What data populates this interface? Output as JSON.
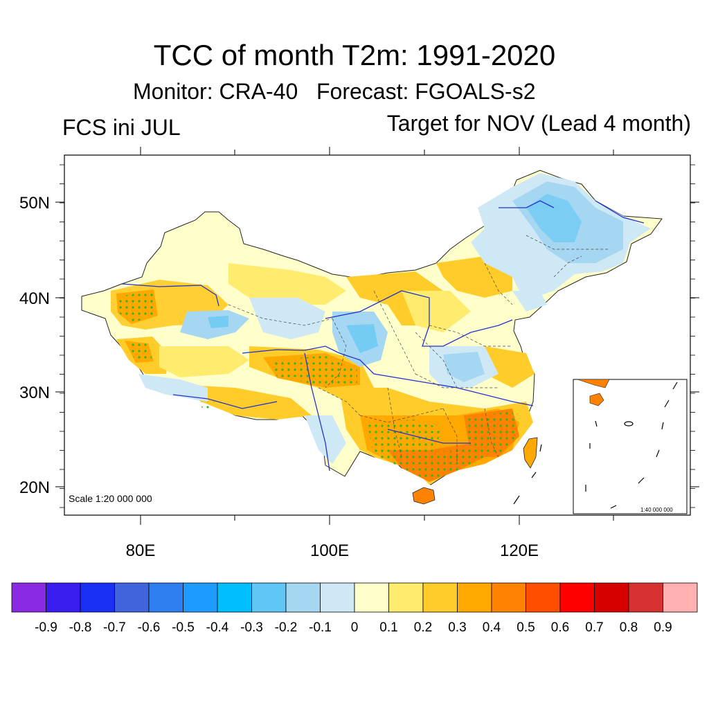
{
  "title": "TCC of month T2m: 1991-2020",
  "subtitle": "Monitor: CRA-40   Forecast: FGOALS-s2",
  "left_label": "FCS ini JUL",
  "right_label": "Target for NOV (Lead 4 month)",
  "axes": {
    "lat_ticks": [
      "50N",
      "40N",
      "30N",
      "20N"
    ],
    "lon_ticks": [
      "80E",
      "100E",
      "120E"
    ]
  },
  "scale_main": "Scale 1:20 000 000",
  "scale_inset": "1:40 000 000",
  "colorbar": {
    "labels": [
      "-0.9",
      "-0.8",
      "-0.7",
      "-0.6",
      "-0.5",
      "-0.4",
      "-0.3",
      "-0.2",
      "-0.1",
      "0",
      "0.1",
      "0.2",
      "0.3",
      "0.4",
      "0.5",
      "0.6",
      "0.7",
      "0.8",
      "0.9"
    ],
    "colors": [
      "#8a2be2",
      "#3a1ef0",
      "#1a30f5",
      "#3f64dd",
      "#2f7ff0",
      "#1e9bff",
      "#00bfff",
      "#5fc6f5",
      "#a6d7f2",
      "#cfe8f6",
      "#ffffcc",
      "#ffec6e",
      "#ffcc2a",
      "#ffa800",
      "#ff8200",
      "#ff4e00",
      "#ff0000",
      "#d70000",
      "#d63232",
      "#ffb0b0"
    ]
  },
  "colors": {
    "river": "#2233cc",
    "border": "#222222",
    "significance_dot": "#22bb22"
  }
}
